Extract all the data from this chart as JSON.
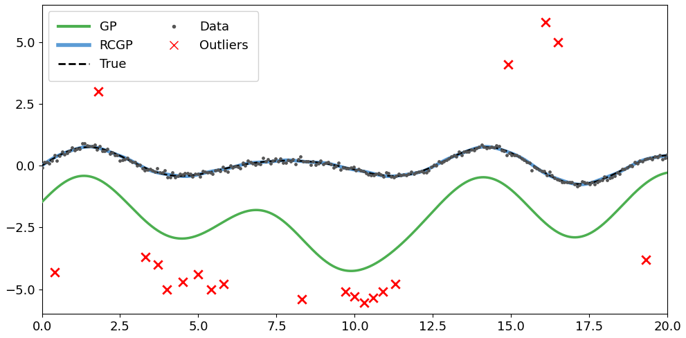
{
  "xlim": [
    0.0,
    20.0
  ],
  "ylim": [
    -6.0,
    6.5
  ],
  "xticks": [
    0.0,
    2.5,
    5.0,
    7.5,
    10.0,
    12.5,
    15.0,
    17.5,
    20.0
  ],
  "yticks": [
    -5.0,
    -2.5,
    0.0,
    2.5,
    5.0
  ],
  "true_color": "#000000",
  "gp_color": "#4caf50",
  "rcgp_color": "#5b9bd5",
  "data_color": "#555555",
  "outlier_color": "#ff0000",
  "gp_linewidth": 2.5,
  "rcgp_linewidth": 3.5,
  "true_linewidth": 1.8,
  "outliers_x": [
    1.8,
    0.4,
    3.3,
    3.7,
    4.0,
    4.5,
    5.0,
    5.4,
    5.8,
    8.3,
    9.7,
    10.0,
    10.3,
    10.6,
    10.9,
    11.3,
    14.9,
    16.1,
    16.5,
    19.3
  ],
  "outliers_y": [
    3.0,
    -4.3,
    -3.7,
    -4.0,
    -5.0,
    -4.7,
    -4.4,
    -5.0,
    -4.8,
    -5.4,
    -5.1,
    -5.3,
    -5.55,
    -5.35,
    -5.1,
    -4.8,
    4.1,
    5.8,
    5.0,
    -3.8
  ],
  "legend_loc": "upper left",
  "figsize": [
    9.91,
    4.88
  ],
  "dpi": 100
}
